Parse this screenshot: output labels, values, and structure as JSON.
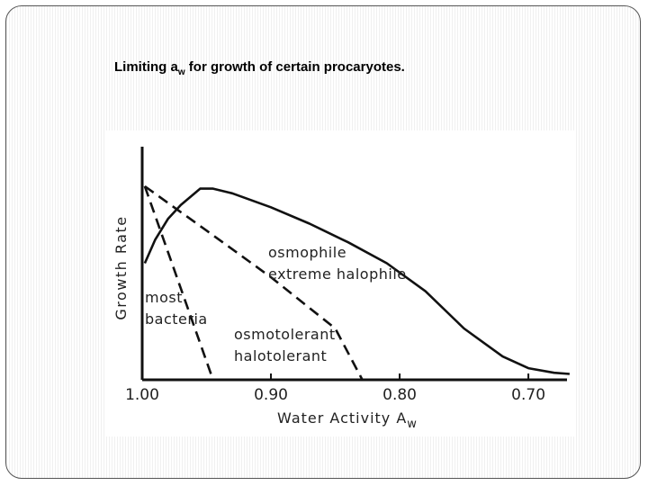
{
  "slide": {
    "title_main": "Limiting a",
    "title_sub": "w",
    "title_rest": " for growth of certain procaryotes."
  },
  "chart_data": {
    "type": "line",
    "title": "",
    "xlabel_main": "Water Activity A",
    "xlabel_sub": "w",
    "ylabel": "Growth Rate",
    "xlim": [
      1.0,
      0.67
    ],
    "ylim": [
      0,
      1
    ],
    "x_reversed": true,
    "x_ticks": [
      1.0,
      0.9,
      0.8,
      0.7
    ],
    "x_tick_labels": [
      "1.00",
      "0.90",
      "0.80",
      "0.70"
    ],
    "grid": false,
    "series": [
      {
        "key": "osmophile",
        "style": "solid",
        "label_lines": [
          "osmophile",
          "extreme halophile"
        ],
        "points": [
          [
            0.998,
            0.5
          ],
          [
            0.99,
            0.6
          ],
          [
            0.98,
            0.69
          ],
          [
            0.97,
            0.75
          ],
          [
            0.955,
            0.82
          ],
          [
            0.945,
            0.82
          ],
          [
            0.93,
            0.8
          ],
          [
            0.9,
            0.74
          ],
          [
            0.87,
            0.67
          ],
          [
            0.84,
            0.59
          ],
          [
            0.81,
            0.5
          ],
          [
            0.78,
            0.38
          ],
          [
            0.75,
            0.22
          ],
          [
            0.72,
            0.1
          ],
          [
            0.7,
            0.05
          ],
          [
            0.68,
            0.03
          ],
          [
            0.668,
            0.025
          ]
        ]
      },
      {
        "key": "most-bacteria",
        "style": "dashed",
        "label_lines": [
          "most",
          "bacteria"
        ],
        "points": [
          [
            0.998,
            0.83
          ],
          [
            0.945,
            0.0
          ]
        ]
      },
      {
        "key": "osmotolerant",
        "style": "dashed",
        "label_lines": [
          "osmotolerant",
          "halotolerant"
        ],
        "points": [
          [
            0.998,
            0.83
          ],
          [
            0.95,
            0.64
          ],
          [
            0.9,
            0.44
          ],
          [
            0.85,
            0.22
          ],
          [
            0.829,
            0.0
          ]
        ]
      }
    ]
  }
}
